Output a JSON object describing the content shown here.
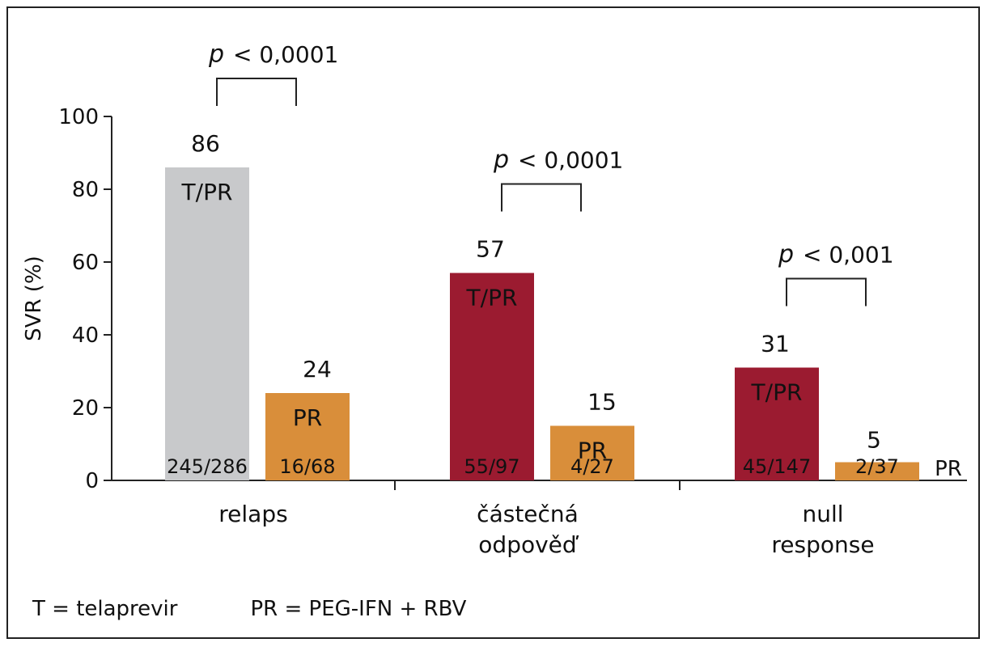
{
  "chart_data": {
    "type": "bar",
    "ylabel": "SVR (%)",
    "xlabel": "",
    "ylim": [
      0,
      100
    ],
    "yticks": [
      "0",
      "20",
      "40",
      "60",
      "80",
      "100"
    ],
    "categories": [
      {
        "lines": [
          "relaps"
        ]
      },
      {
        "lines": [
          "částečná",
          "odpověď"
        ]
      },
      {
        "lines": [
          "null",
          "response"
        ]
      }
    ],
    "groups": [
      {
        "bars": [
          {
            "series": "T/PR",
            "value": 86,
            "value_label": "86",
            "inner_label": "T/PR",
            "count": "245/286",
            "color": "#c8c9cb"
          },
          {
            "series": "PR",
            "value": 24,
            "value_label": "24",
            "inner_label": "PR",
            "count": "16/68",
            "color": "#d98e3a"
          }
        ],
        "pvalue": {
          "p": "p",
          "text": "< 0,0001"
        }
      },
      {
        "bars": [
          {
            "series": "T/PR",
            "value": 57,
            "value_label": "57",
            "inner_label": "T/PR",
            "count": "55/97",
            "color": "#9b1b30"
          },
          {
            "series": "PR",
            "value": 15,
            "value_label": "15",
            "inner_label": "PR",
            "count": "4/27",
            "color": "#d98e3a"
          }
        ],
        "pvalue": {
          "p": "p",
          "text": "< 0,0001"
        }
      },
      {
        "bars": [
          {
            "series": "T/PR",
            "value": 31,
            "value_label": "31",
            "inner_label": "T/PR",
            "count": "45/147",
            "color": "#9b1b30"
          },
          {
            "series": "PR",
            "value": 5,
            "value_label": "5",
            "inner_label": "PR",
            "inner_label_outside": true,
            "count": "2/37",
            "color": "#d98e3a"
          }
        ],
        "pvalue": {
          "p": "p",
          "text": "< 0,001"
        }
      }
    ],
    "legend": {
      "t_def": "T = telaprevir",
      "pr_def": "PR = PEG-IFN + RBV"
    },
    "grid": false
  }
}
